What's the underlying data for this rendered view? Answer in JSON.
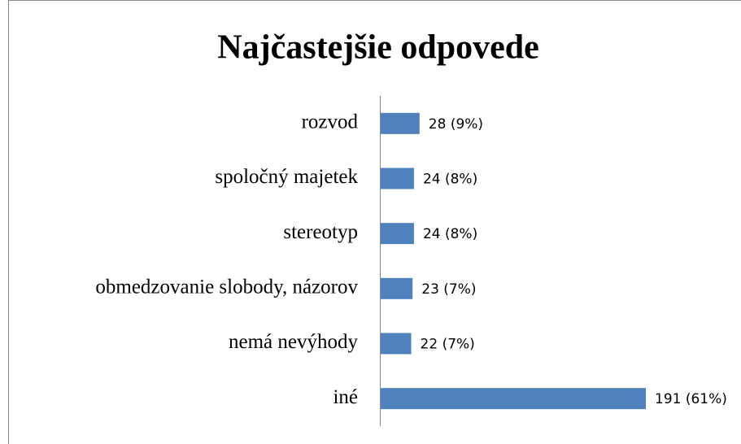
{
  "chart_data": {
    "type": "bar",
    "orientation": "horizontal",
    "title": "Najčastejšie odpovede",
    "categories": [
      "rozvod",
      "spoločný majetek",
      "stereotyp",
      "obmedzovanie slobody, názorov",
      "nemá nevýhody",
      "iné"
    ],
    "values": [
      28,
      24,
      24,
      23,
      22,
      191
    ],
    "value_labels": [
      "28 (9%)",
      "24 (8%)",
      "24 (8%)",
      "23 (7%)",
      "22 (7%)",
      "191 (61%)"
    ],
    "color": "#4f81bd"
  }
}
